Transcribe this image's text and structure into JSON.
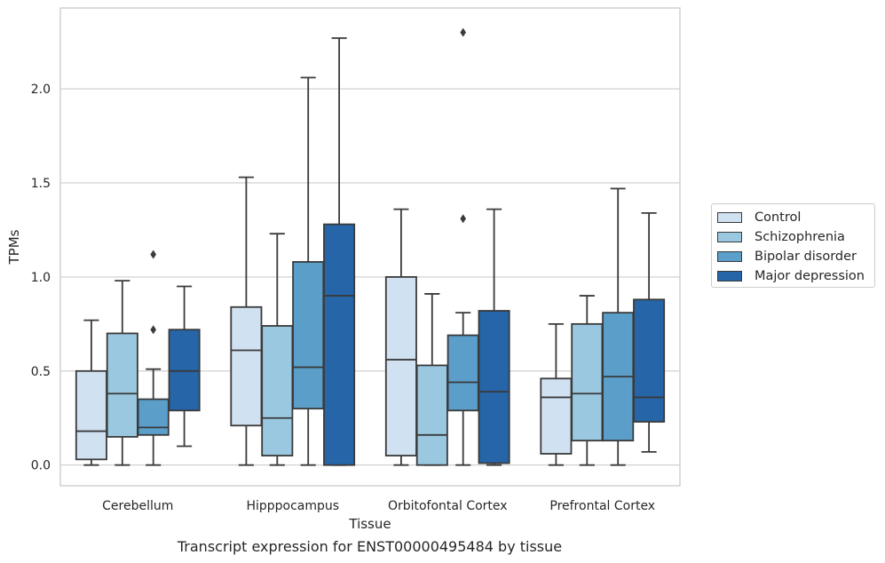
{
  "chart_data": {
    "type": "box",
    "title": "",
    "caption": "Transcript expression for ENST00000495484 by tissue",
    "xlabel": "Tissue",
    "ylabel": "TPMs",
    "ylim": [
      -0.11,
      2.43
    ],
    "yticks": [
      0.0,
      0.5,
      1.0,
      1.5,
      2.0
    ],
    "ytick_labels": [
      "0.0",
      "0.5",
      "1.0",
      "1.5",
      "2.0"
    ],
    "grid": "horizontal",
    "legend_position": "right",
    "categories": [
      "Cerebellum",
      "Hipppocampus",
      "Orbitofontal Cortex",
      "Prefrontal Cortex"
    ],
    "series": [
      {
        "name": "Control",
        "color": "#d0e1f2",
        "boxes": [
          {
            "min": 0.0,
            "q1": 0.03,
            "median": 0.18,
            "q3": 0.5,
            "max": 0.77,
            "outliers": []
          },
          {
            "min": 0.0,
            "q1": 0.21,
            "median": 0.61,
            "q3": 0.84,
            "max": 1.53,
            "outliers": []
          },
          {
            "min": 0.0,
            "q1": 0.05,
            "median": 0.56,
            "q3": 1.0,
            "max": 1.36,
            "outliers": []
          },
          {
            "min": 0.0,
            "q1": 0.06,
            "median": 0.36,
            "q3": 0.46,
            "max": 0.75,
            "outliers": []
          }
        ]
      },
      {
        "name": "Schizophrenia",
        "color": "#9ac8e0",
        "boxes": [
          {
            "min": 0.0,
            "q1": 0.15,
            "median": 0.38,
            "q3": 0.7,
            "max": 0.98,
            "outliers": []
          },
          {
            "min": 0.0,
            "q1": 0.05,
            "median": 0.25,
            "q3": 0.74,
            "max": 1.23,
            "outliers": []
          },
          {
            "min": 0.0,
            "q1": 0.0,
            "median": 0.16,
            "q3": 0.53,
            "max": 0.91,
            "outliers": []
          },
          {
            "min": 0.0,
            "q1": 0.13,
            "median": 0.38,
            "q3": 0.75,
            "max": 0.9,
            "outliers": []
          }
        ]
      },
      {
        "name": "Bipolar disorder",
        "color": "#5a9ec9",
        "boxes": [
          {
            "min": 0.0,
            "q1": 0.16,
            "median": 0.2,
            "q3": 0.35,
            "max": 0.51,
            "outliers": [
              0.72,
              1.12
            ]
          },
          {
            "min": 0.0,
            "q1": 0.3,
            "median": 0.52,
            "q3": 1.08,
            "max": 2.06,
            "outliers": []
          },
          {
            "min": 0.0,
            "q1": 0.29,
            "median": 0.44,
            "q3": 0.69,
            "max": 0.81,
            "outliers": [
              1.31,
              2.3
            ]
          },
          {
            "min": 0.0,
            "q1": 0.13,
            "median": 0.47,
            "q3": 0.81,
            "max": 1.47,
            "outliers": []
          }
        ]
      },
      {
        "name": "Major depression",
        "color": "#2565a8",
        "boxes": [
          {
            "min": 0.1,
            "q1": 0.29,
            "median": 0.5,
            "q3": 0.72,
            "max": 0.95,
            "outliers": []
          },
          {
            "min": 0.0,
            "q1": 0.0,
            "median": 0.9,
            "q3": 1.28,
            "max": 2.27,
            "outliers": []
          },
          {
            "min": 0.0,
            "q1": 0.01,
            "median": 0.39,
            "q3": 0.82,
            "max": 1.36,
            "outliers": []
          },
          {
            "min": 0.07,
            "q1": 0.23,
            "median": 0.36,
            "q3": 0.88,
            "max": 1.34,
            "outliers": []
          }
        ]
      }
    ]
  }
}
